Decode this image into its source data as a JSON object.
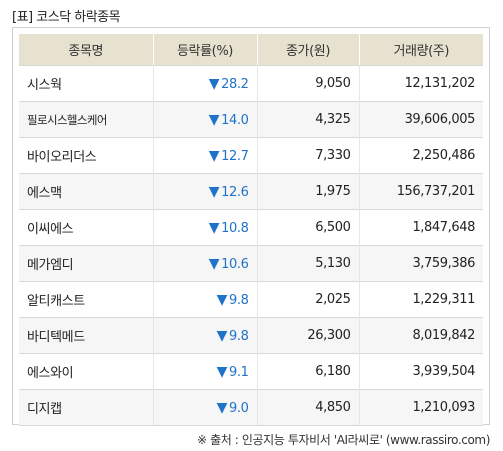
{
  "title": "[표] 코스닥 하락종목",
  "table": {
    "headers": [
      "종목명",
      "등락률(%)",
      "종가(원)",
      "거래량(주)"
    ],
    "down_arrow": "▼",
    "rows": [
      {
        "name": "시스웍",
        "rate": "28.2",
        "price": "9,050",
        "volume": "12,131,202"
      },
      {
        "name": "필로시스헬스케어",
        "rate": "14.0",
        "price": "4,325",
        "volume": "39,606,005"
      },
      {
        "name": "바이오리더스",
        "rate": "12.7",
        "price": "7,330",
        "volume": "2,250,486"
      },
      {
        "name": "에스맥",
        "rate": "12.6",
        "price": "1,975",
        "volume": "156,737,201"
      },
      {
        "name": "이씨에스",
        "rate": "10.8",
        "price": "6,500",
        "volume": "1,847,648"
      },
      {
        "name": "메가엠디",
        "rate": "10.6",
        "price": "5,130",
        "volume": "3,759,386"
      },
      {
        "name": "알티캐스트",
        "rate": "9.8",
        "price": "2,025",
        "volume": "1,229,311"
      },
      {
        "name": "바디텍메드",
        "rate": "9.8",
        "price": "26,300",
        "volume": "8,019,842"
      },
      {
        "name": "에스와이",
        "rate": "9.1",
        "price": "6,180",
        "volume": "3,939,504"
      },
      {
        "name": "디지캡",
        "rate": "9.0",
        "price": "4,850",
        "volume": "1,210,093"
      }
    ]
  },
  "source": "※ 출처 : 인공지능 투자비서 'AI라씨로' (www.rassiro.com)",
  "colors": {
    "down": "#1f73c8",
    "header_bg": "#e7e2cf"
  }
}
